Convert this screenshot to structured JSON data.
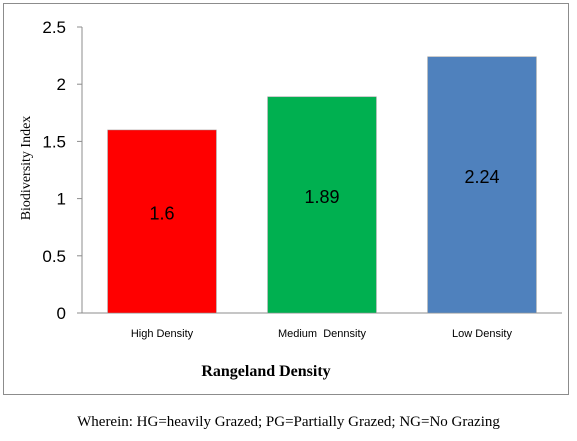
{
  "chart_data": {
    "type": "bar",
    "categories": [
      "High Density",
      "Medium  Dennsity",
      "Low Density"
    ],
    "values": [
      1.6,
      1.89,
      2.24
    ],
    "data_labels": [
      "1.6",
      "1.89",
      "2.24"
    ],
    "colors": [
      "#ff0000",
      "#00b050",
      "#4f81bd"
    ],
    "title": "",
    "xlabel": "Rangeland Density",
    "ylabel": "Biodiversity Index",
    "ylim": [
      0,
      2.5
    ],
    "yticks": [
      "0",
      "0.5",
      "1",
      "1.5",
      "2",
      "2.5"
    ],
    "grid": false,
    "legend": "none"
  },
  "footnote": "Wherein: HG=heavily Grazed; PG=Partially Grazed; NG=No Grazing"
}
